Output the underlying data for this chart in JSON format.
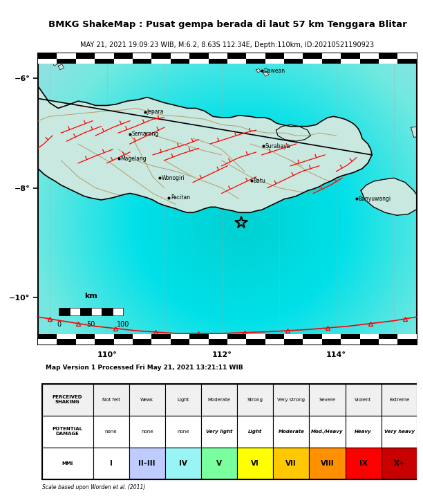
{
  "title": "BMKG ShakeMap : Pusat gempa berada di laut 57 km Tenggara Blitar",
  "subtitle": "MAY 21, 2021 19:09:23 WIB, M:6.2, 8.63S 112.34E, Depth:110km, ID:20210521190923",
  "map_version_text": "Map Version 1 Processed Fri May 21, 2021 13:21:11 WIB",
  "scale_text": "Scale based upon Worden et al. (2011)",
  "bg_map_color": "#7aadcf",
  "ocean_color": "#7aadcf",
  "land_base_color": "#c8eae8",
  "shaking_color": "#00e8e8",
  "fig_bg": "#ffffff",
  "mmi_colors": [
    "#ffffff",
    "#bfccff",
    "#99f5f5",
    "#7aff9e",
    "#ffff00",
    "#ffc800",
    "#ff9100",
    "#ff0000",
    "#c80000"
  ],
  "mmi_labels": [
    "I",
    "II–III",
    "IV",
    "V",
    "VI",
    "VII",
    "VIII",
    "IX",
    "X+"
  ],
  "shaking_labels": [
    "Not felt",
    "Weak",
    "Light",
    "Moderate",
    "Strong",
    "Very strong",
    "Severe",
    "Violent",
    "Extreme"
  ],
  "damage_labels": [
    "none",
    "none",
    "none",
    "Very light",
    "Light",
    "Moderate",
    "Mod./Heavy",
    "Heavy",
    "Very heavy"
  ],
  "damage_italic": [
    false,
    false,
    false,
    true,
    true,
    true,
    true,
    true,
    true
  ],
  "xlim": [
    108.8,
    115.4
  ],
  "ylim": [
    -10.85,
    -5.55
  ],
  "lon_ticks": [
    110,
    112,
    114
  ],
  "lat_ticks": [
    -6,
    -8,
    -10
  ],
  "epicenter_lon": 112.34,
  "epicenter_lat": -8.63
}
